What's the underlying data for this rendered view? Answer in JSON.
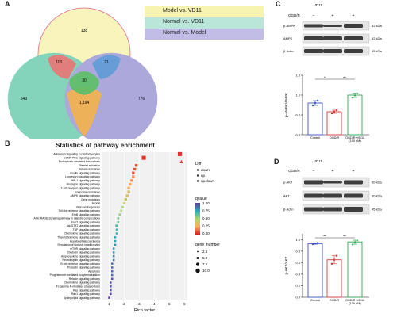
{
  "panels": {
    "A": "A",
    "B": "B",
    "C": "C",
    "D": "D"
  },
  "venn": {
    "legend": [
      {
        "label": "Model vs. VD11",
        "color": "#f7f3b0"
      },
      {
        "label": "Normal vs. VD11",
        "color": "#b9e6d8"
      },
      {
        "label": "Normal vs. Model",
        "color": "#c1bde6"
      }
    ],
    "regions": {
      "top_only": "138",
      "top_left": "113",
      "top_right": "21",
      "center": "30",
      "left_only": "643",
      "left_right": "1,194",
      "right_only": "776"
    }
  },
  "enrichment": {
    "title": "Statistics of pathway enrichment",
    "xlabel": "Rich factor",
    "pathways": [
      "Adrenergic signaling in cardiomyocytes",
      "cGMP-PKG signaling pathway",
      "Endocytosis-mediated transcytosis",
      "Platelet activation",
      "Insulin resistance",
      "Insulin signaling pathway",
      "Longevity regulating pathway",
      "HIF-1 signaling pathway",
      "Glucagon signaling pathway",
      "T cell receptor signaling pathway",
      "Endocrine resistance",
      "AMPK signaling pathway",
      "Gene mutations",
      "Axonal",
      "Viral carcinogenesis",
      "Toll-like receptor signaling pathway",
      "ErbB signaling pathway",
      "AGE-RAGE signaling pathway in diabetic complications",
      "FoxO signaling pathway",
      "Jak-STAT signaling pathway",
      "TNF signaling pathway",
      "Chemokine signaling pathway",
      "Thyroid hormone signaling pathway",
      "Hepatocellular carcinoma",
      "Regulation of lipolysis in adipocytes",
      "mTOR signaling pathway",
      "Oxytocin signaling pathway",
      "Adipocytokine signaling pathway",
      "Neurotrophin signaling pathway",
      "B cell receptor signaling pathway",
      "Prolactin signaling pathway",
      "Apoptosis",
      "Progesterone-mediated oocyte maturation",
      "Relaxin signaling pathway",
      "Chemokine signaling pathway",
      "Fc gamma R-mediated phagocytosis",
      "Ras signaling pathway",
      "Rap1 signaling pathway",
      "Sphingolipid signaling pathway"
    ],
    "rich_factor": [
      5.7,
      3.3,
      5.8,
      2.8,
      2.7,
      2.6,
      2.6,
      2.5,
      2.4,
      2.3,
      2.3,
      2.2,
      2.1,
      2.0,
      1.9,
      1.8,
      1.7,
      1.6,
      1.6,
      1.5,
      1.5,
      1.5,
      1.4,
      1.4,
      1.4,
      1.3,
      1.3,
      1.3,
      1.3,
      1.2,
      1.2,
      1.2,
      1.2,
      1.2,
      1.1,
      1.1,
      1.1,
      1.1,
      1.0
    ],
    "qvalue": [
      0.05,
      0.05,
      0.05,
      0.1,
      0.1,
      0.1,
      0.2,
      0.2,
      0.25,
      0.3,
      0.35,
      0.35,
      0.4,
      0.4,
      0.5,
      0.5,
      0.55,
      0.6,
      0.6,
      0.65,
      0.7,
      0.7,
      0.75,
      0.75,
      0.8,
      0.8,
      0.8,
      0.85,
      0.85,
      0.9,
      0.9,
      0.9,
      0.9,
      0.95,
      0.95,
      0.95,
      0.95,
      1.0,
      1.0
    ],
    "gene_number": [
      10,
      10,
      7,
      5,
      5,
      5,
      5,
      5,
      5,
      5,
      5,
      5,
      5,
      2.5,
      2.5,
      2.5,
      2.5,
      2.5,
      2.5,
      5,
      2.5,
      2.5,
      2.5,
      2.5,
      2.5,
      2.5,
      2.5,
      2.5,
      2.5,
      2.5,
      2.5,
      2.5,
      2.5,
      2.5,
      2.5,
      2.5,
      2.5,
      2.5,
      2.5
    ],
    "shape": [
      "square",
      "square",
      "triangle",
      "square",
      "square",
      "square",
      "square",
      "square",
      "square",
      "square",
      "square",
      "square",
      "square",
      "square",
      "square",
      "square",
      "square",
      "square",
      "square",
      "square",
      "square",
      "square",
      "square",
      "square",
      "square",
      "square",
      "square",
      "square",
      "square",
      "square",
      "square",
      "square",
      "square",
      "square",
      "square",
      "square",
      "square",
      "square",
      "square"
    ],
    "xticks": [
      "1",
      "2",
      "3",
      "4",
      "5",
      "6"
    ],
    "diff_legend": {
      "title": "Diff",
      "items": [
        "down",
        "up",
        "up.down"
      ]
    },
    "qvalue_legend": {
      "title": "qvalue",
      "ticks": [
        "1.00",
        "0.75",
        "0.50",
        "0.25",
        "0.00"
      ]
    },
    "gene_legend": {
      "title": "gene_number",
      "items": [
        "2.5",
        "5.0",
        "7.5",
        "10.0"
      ]
    }
  },
  "panel_c": {
    "vd11_label": "VD11",
    "ogdr_label": "OGD/R",
    "signs": [
      "−",
      "+",
      "+"
    ],
    "vd11_signs": [
      "−",
      "−",
      "+"
    ],
    "bands": [
      {
        "name": "p-AMPK",
        "kda": "62 kDa"
      },
      {
        "name": "AMPK",
        "kda": "62 kDa"
      },
      {
        "name": "β-Actin",
        "kda": "45 kDa"
      }
    ],
    "chart_data": {
      "type": "bar",
      "categories": [
        "Control",
        "OGD/R",
        "OGD/R+VD11 (100 nM)"
      ],
      "values": [
        0.8,
        0.58,
        1.0
      ],
      "points": [
        [
          0.74,
          0.8,
          0.86
        ],
        [
          0.54,
          0.58,
          0.62
        ],
        [
          0.94,
          1.0,
          1.05
        ]
      ],
      "colors": [
        "#3a53c9",
        "#d63a3a",
        "#2fa84f"
      ],
      "ylabel": "p-AMPK/AMPK",
      "ylim": [
        0,
        1.5
      ],
      "yticks": [
        "0.0",
        "0.5",
        "1.0",
        "1.5"
      ],
      "sig": [
        "*",
        "**"
      ]
    }
  },
  "panel_d": {
    "vd11_label": "VD11",
    "ogdr_label": "OGD/R",
    "signs": [
      "−",
      "+",
      "+"
    ],
    "bands": [
      {
        "name": "p-AKT",
        "kda": "60 kDa"
      },
      {
        "name": "AKT",
        "kda": "60 kDa"
      },
      {
        "name": "β-Actin",
        "kda": "45 kDa"
      }
    ],
    "chart_data": {
      "type": "bar",
      "categories": [
        "Control",
        "OGD/R",
        "OGD/R+VD11 (100 nM)"
      ],
      "values": [
        0.93,
        0.65,
        0.96
      ],
      "points": [
        [
          0.92,
          0.93,
          0.94
        ],
        [
          0.58,
          0.65,
          0.72
        ],
        [
          0.92,
          0.96,
          0.99
        ]
      ],
      "colors": [
        "#3a53c9",
        "#d63a3a",
        "#2fa84f"
      ],
      "ylabel": "p-AKT/AKT",
      "ylim": [
        0,
        1.1
      ],
      "yticks": [
        "0.0",
        "0.2",
        "0.4",
        "0.6",
        "0.8",
        "1.0"
      ],
      "sig": [
        "**",
        "**"
      ]
    }
  }
}
